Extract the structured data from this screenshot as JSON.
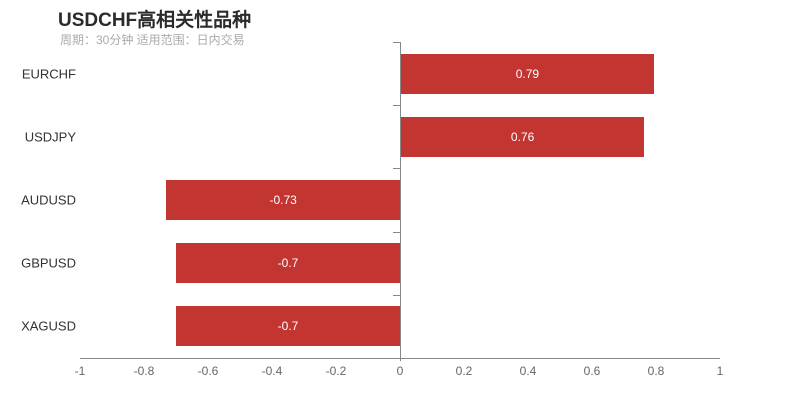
{
  "header": {
    "title": "USDCHF高相关性品种",
    "subtitle": "周期：30分钟 适用范围：日内交易"
  },
  "colors": {
    "bar": "#c23531",
    "axis": "#888888",
    "x_tick_label": "#666666",
    "category_label": "#333333",
    "value_label": "#ffffff",
    "title": "#2b2b2b",
    "subtitle": "#aaaaaa",
    "background": "#ffffff"
  },
  "chart_data": {
    "type": "bar",
    "orientation": "horizontal",
    "title": "USDCHF高相关性品种",
    "subtitle": "周期：30分钟 适用范围：日内交易",
    "categories": [
      "EURCHF",
      "USDJPY",
      "AUDUSD",
      "GBPUSD",
      "XAGUSD"
    ],
    "values": [
      0.79,
      0.76,
      -0.73,
      -0.7,
      -0.7
    ],
    "value_labels": [
      "0.79",
      "0.76",
      "-0.73",
      "-0.7",
      "-0.7"
    ],
    "xlabel": "",
    "ylabel": "",
    "xlim": [
      -1,
      1
    ],
    "x_ticks": [
      -1,
      -0.8,
      -0.6,
      -0.4,
      -0.2,
      0,
      0.2,
      0.4,
      0.6,
      0.8,
      1
    ],
    "x_tick_labels": [
      "-1",
      "-0.8",
      "-0.6",
      "-0.4",
      "-0.2",
      "0",
      "0.2",
      "0.4",
      "0.6",
      "0.8",
      "1"
    ],
    "grid": false,
    "legend": false,
    "value_label_position": "inside-center"
  }
}
